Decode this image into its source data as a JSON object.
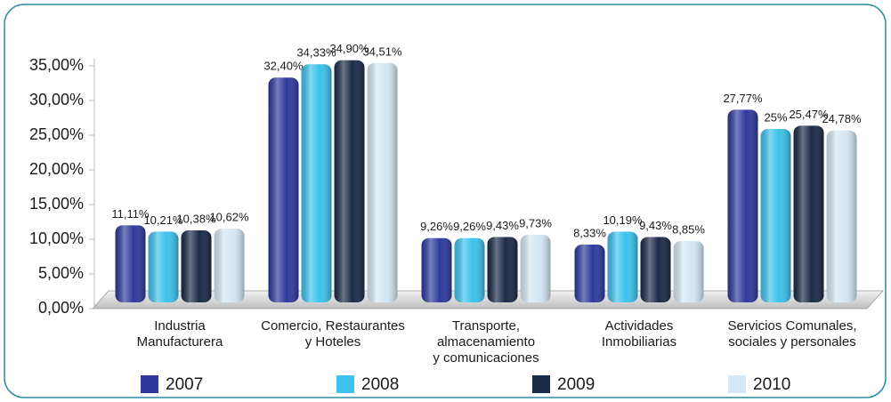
{
  "chart_data": {
    "type": "bar",
    "categories": [
      [
        "Industria",
        "Manufacturera"
      ],
      [
        "Comercio, Restaurantes",
        "y Hoteles"
      ],
      [
        "Transporte,",
        "almacenamiento",
        "y comunicaciones"
      ],
      [
        "Actividades",
        "Inmobiliarias"
      ],
      [
        "Servicios Comunales,",
        "sociales y personales"
      ]
    ],
    "series": [
      {
        "name": "2007",
        "color": "#2d3a9c",
        "values": [
          11.11,
          32.4,
          9.26,
          8.33,
          27.77
        ],
        "value_labels": [
          "11,11%",
          "32,40%",
          "9,26%",
          "8,33%",
          "27,77%"
        ]
      },
      {
        "name": "2008",
        "color": "#3cc2ec",
        "values": [
          10.21,
          34.33,
          9.26,
          10.19,
          25
        ],
        "value_labels": [
          "10,21%",
          "34,33%",
          "9,26%",
          "10,19%",
          "25%"
        ]
      },
      {
        "name": "2009",
        "color": "#1b2a48",
        "values": [
          10.38,
          34.9,
          9.43,
          9.43,
          25.47
        ],
        "value_labels": [
          "10,38%",
          "34,90%",
          "9,43%",
          "9,43%",
          "25,47%"
        ]
      },
      {
        "name": "2010",
        "color": "#d4e7f3",
        "values": [
          10.62,
          34.51,
          9.73,
          8.85,
          24.78
        ],
        "value_labels": [
          "10,62%",
          "34,51%",
          "9,73%",
          "8,85%",
          "24,78%"
        ]
      }
    ],
    "ylim": [
      0,
      35
    ],
    "yticks": [
      {
        "value": 0,
        "label": "0,00%"
      },
      {
        "value": 5,
        "label": "5,00%"
      },
      {
        "value": 10,
        "label": "10,00%"
      },
      {
        "value": 15,
        "label": "15,00%"
      },
      {
        "value": 20,
        "label": "20,00%"
      },
      {
        "value": 25,
        "label": "25,00%"
      },
      {
        "value": 30,
        "label": "30,00%"
      },
      {
        "value": 35,
        "label": "35,00%"
      }
    ],
    "legend": "bottom"
  }
}
